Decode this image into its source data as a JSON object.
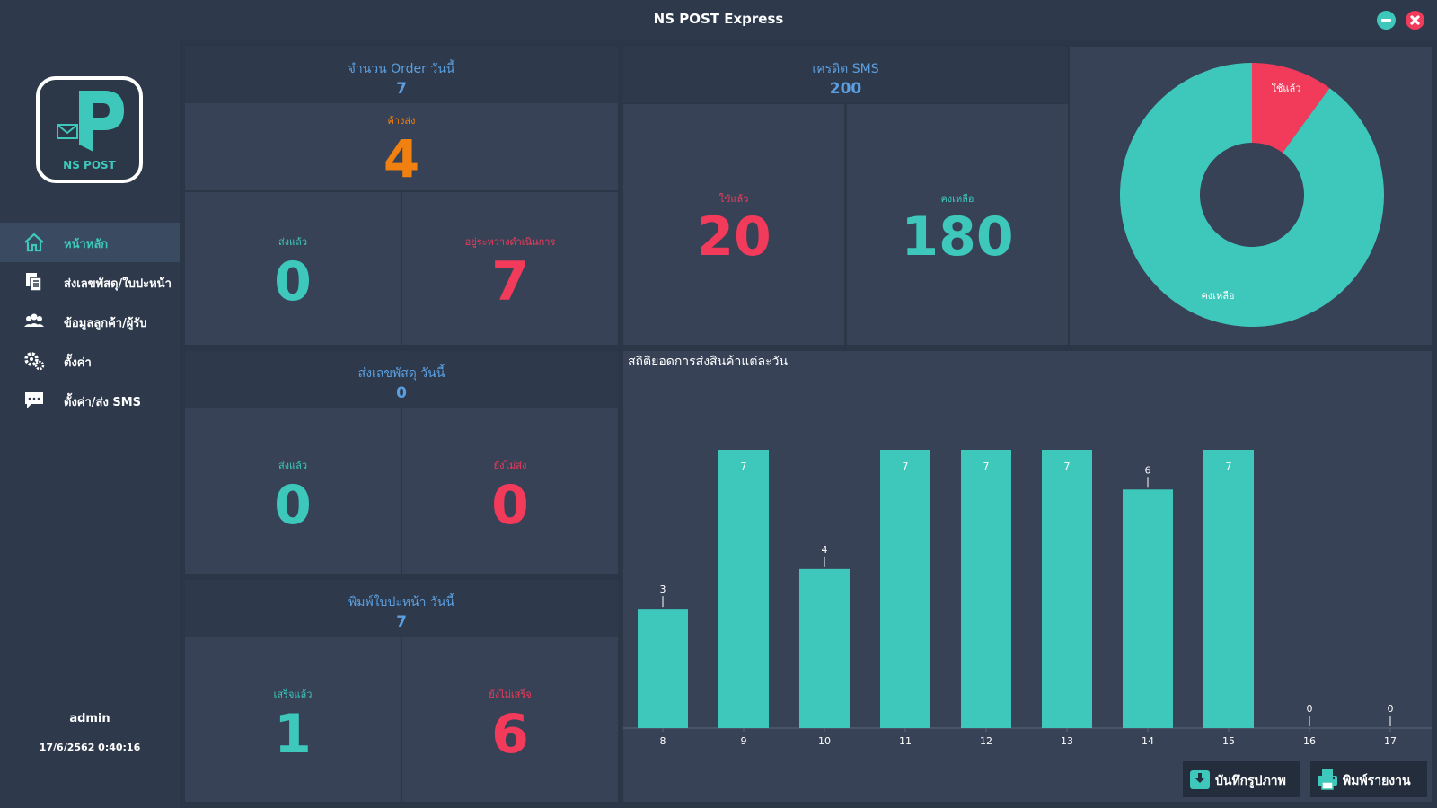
{
  "window": {
    "title": "NS POST Express"
  },
  "logo": {
    "text": "NS POST"
  },
  "sidebar": {
    "items": [
      {
        "label": "หน้าหลัก",
        "icon": "home-icon",
        "active": true
      },
      {
        "label": "ส่งเลขพัสดุ/ใบปะหน้า",
        "icon": "document-icon",
        "active": false
      },
      {
        "label": "ข้อมูลลูกค้า/ผู้รับ",
        "icon": "users-icon",
        "active": false
      },
      {
        "label": "ตั้งค่า",
        "icon": "gears-icon",
        "active": false
      },
      {
        "label": "ตั้งค่า/ส่ง SMS",
        "icon": "chat-icon",
        "active": false
      }
    ],
    "user": "admin",
    "datetime": "17/6/2562 0:40:16"
  },
  "orders": {
    "title": "จำนวน Order วันนี้",
    "total": "7",
    "pending_label": "ค้างส่ง",
    "pending_value": "4",
    "sent_label": "ส่งแล้ว",
    "sent_value": "0",
    "inprogress_label": "อยู่ระหว่างดำเนินการ",
    "inprogress_value": "7"
  },
  "tracking": {
    "title": "ส่งเลขพัสดุ วันนี้",
    "total": "0",
    "sent_label": "ส่งแล้ว",
    "sent_value": "0",
    "notsent_label": "ยังไม่ส่ง",
    "notsent_value": "0"
  },
  "labels_print": {
    "title": "พิมพ์ใบปะหน้า วันนี้",
    "total": "7",
    "done_label": "เสร็จแล้ว",
    "done_value": "1",
    "notdone_label": "ยังไม่เสร็จ",
    "notdone_value": "6"
  },
  "sms": {
    "title": "เครดิต SMS",
    "total": "200",
    "used_label": "ใช้แล้ว",
    "used_value": "20",
    "remaining_label": "คงเหลือ",
    "remaining_value": "180"
  },
  "pie": {
    "type": "pie",
    "slices": [
      {
        "label": "ใช้แล้ว",
        "value": 20,
        "color": "#f23a5a"
      },
      {
        "label": "คงเหลือ",
        "value": 180,
        "color": "#3ec8bb"
      }
    ]
  },
  "chart_data": {
    "type": "bar",
    "title": "สถิติยอดการส่งสินค้าแต่ละวัน",
    "categories": [
      "8",
      "9",
      "10",
      "11",
      "12",
      "13",
      "14",
      "15",
      "16",
      "17"
    ],
    "values": [
      3,
      7,
      4,
      7,
      7,
      7,
      6,
      7,
      0,
      0
    ],
    "ylim": [
      0,
      7
    ],
    "grid": false,
    "color": "#3ec8bb"
  },
  "buttons": {
    "save_image": "บันทึกรูปภาพ",
    "print_report": "พิมพ์รายงาน"
  },
  "colors": {
    "teal": "#3ec8bb",
    "red": "#f23a5a",
    "orange": "#f08010",
    "blue": "#5b9fe0"
  }
}
